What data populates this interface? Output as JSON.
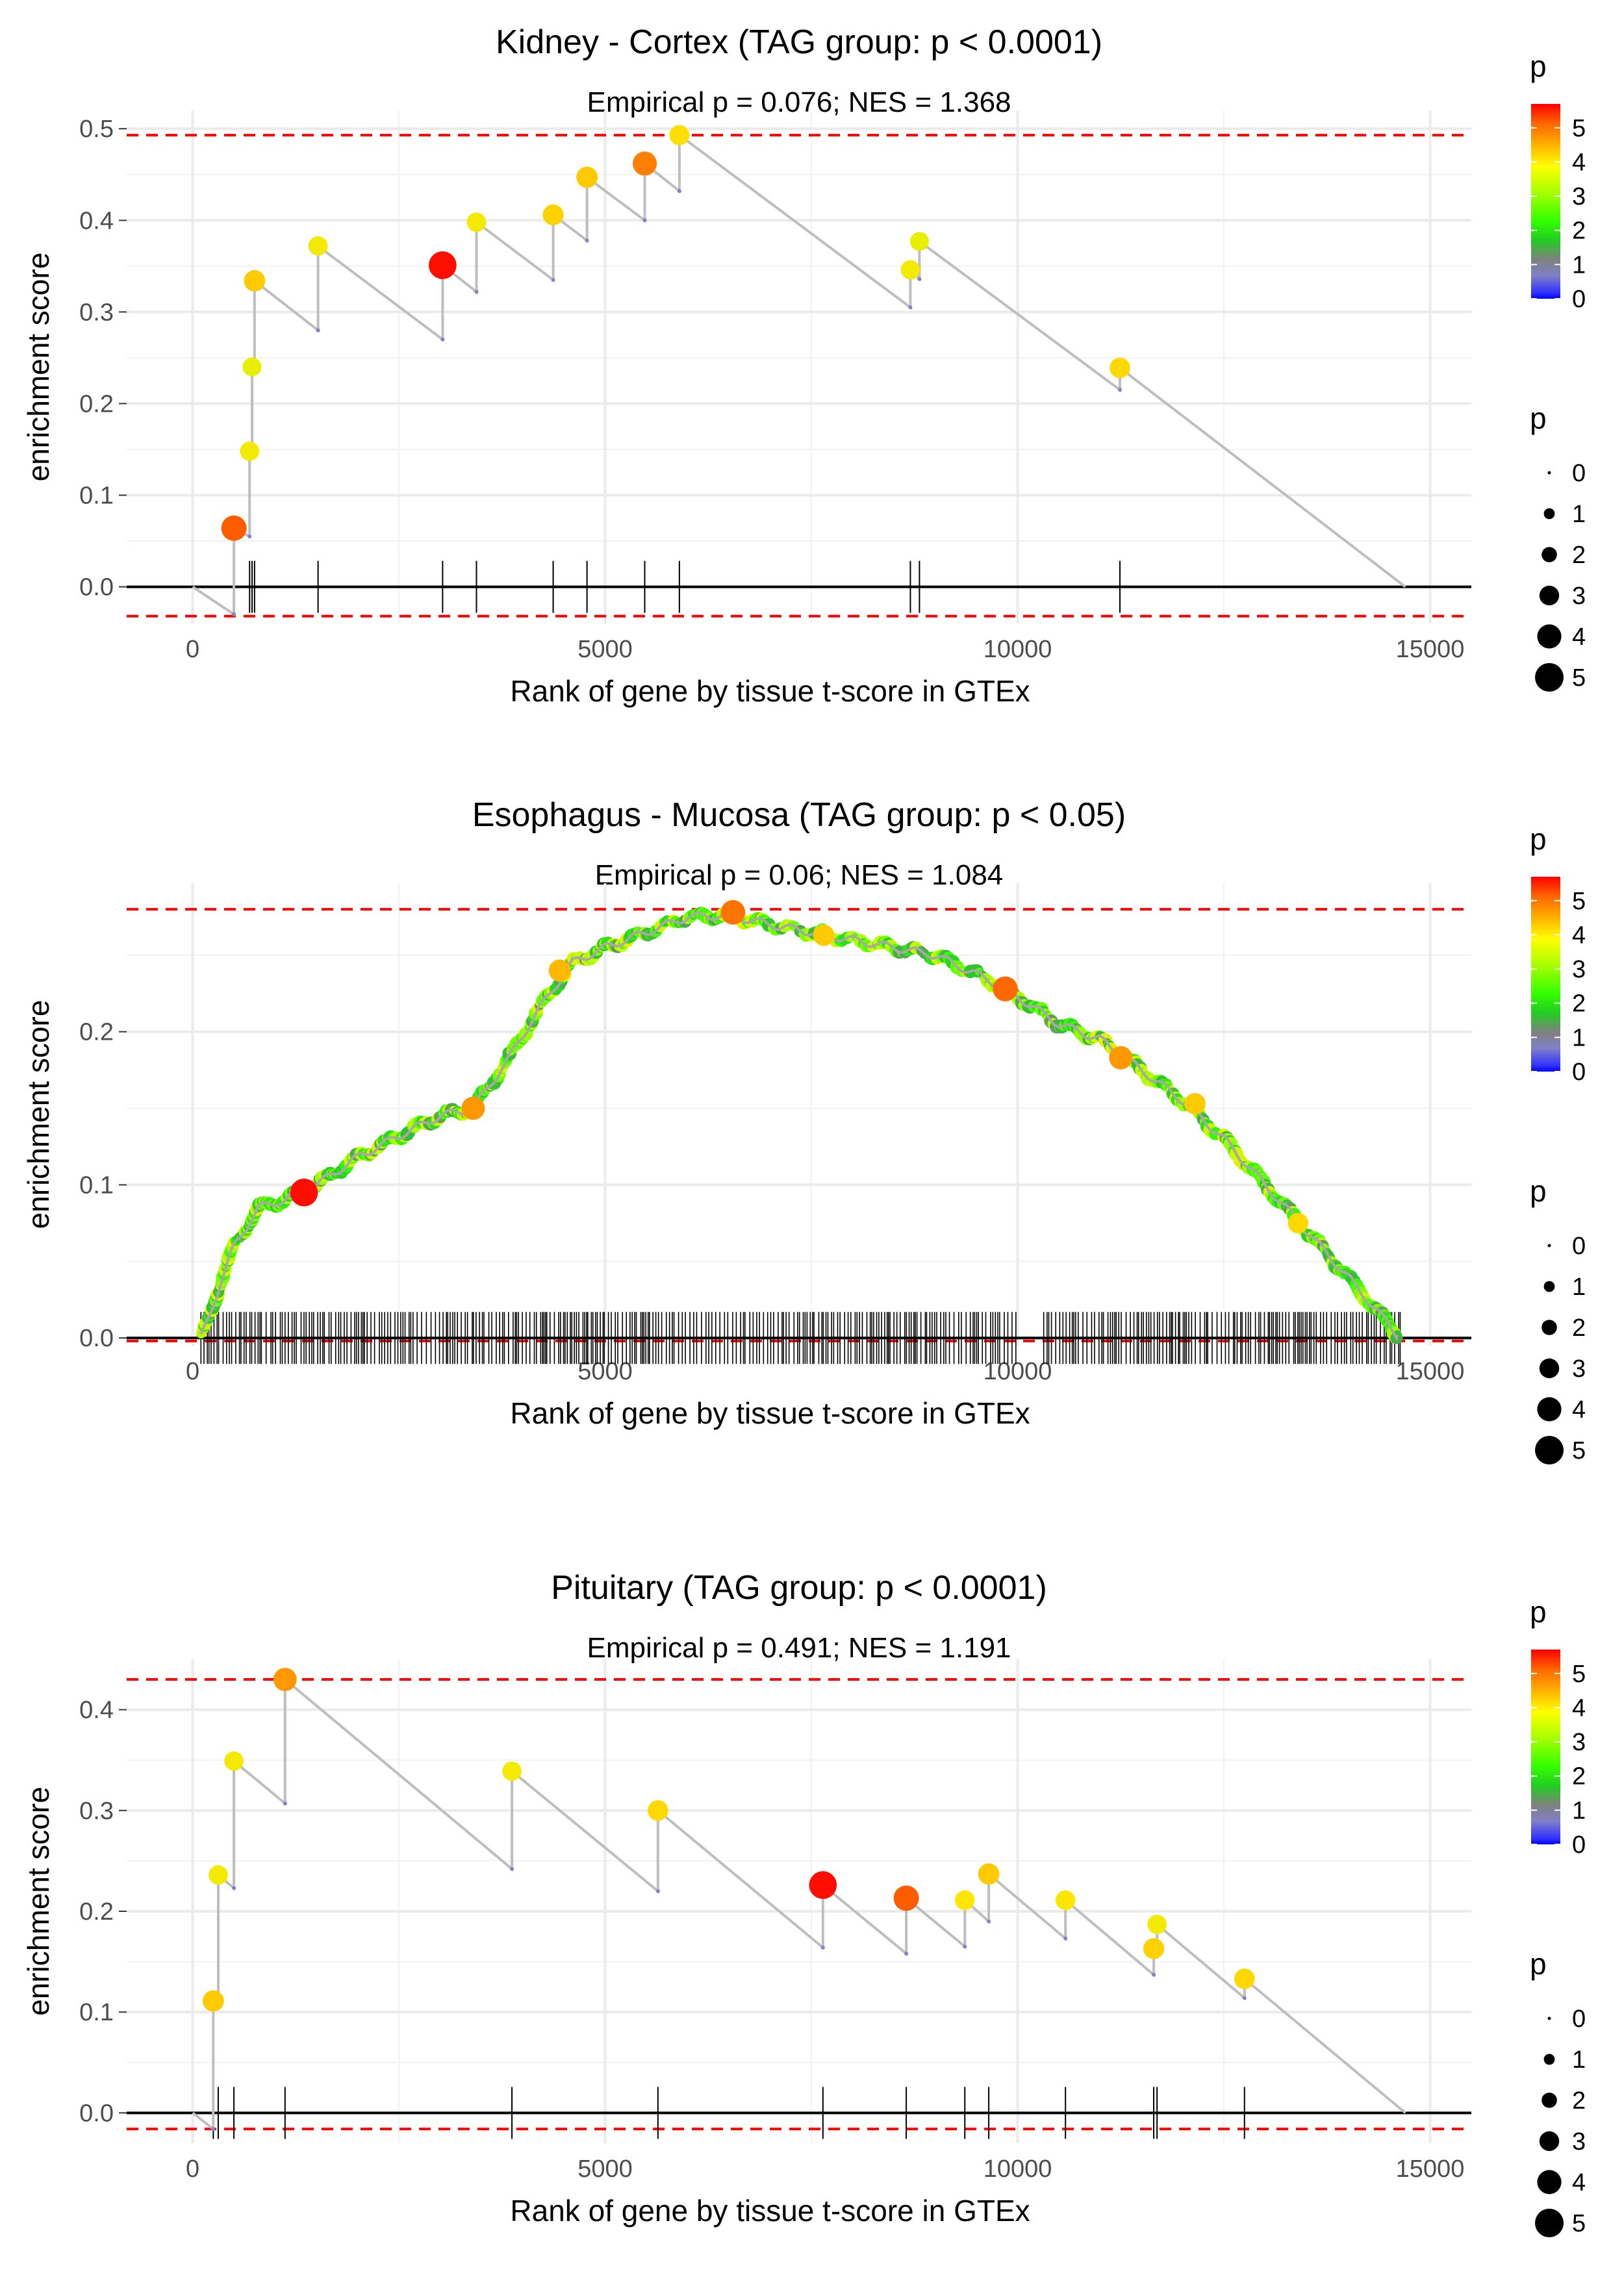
{
  "chart_data": [
    {
      "type": "scatter",
      "title": "Kidney - Cortex (TAG group: p < 0.0001)",
      "subtitle": "Empirical p = 0.076; NES = 1.368",
      "xlabel": "Rank of gene by tissue t-score in GTEx",
      "ylabel": "enrichment score",
      "xlim": [
        -800,
        15500
      ],
      "ylim": [
        -0.04,
        0.52
      ],
      "xticks": [
        0,
        5000,
        10000,
        15000
      ],
      "xtick_labels": [
        "0",
        "5000",
        "10000",
        "15000"
      ],
      "yticks": [
        0.0,
        0.1,
        0.2,
        0.3,
        0.4,
        0.5
      ],
      "ytick_labels": [
        "0.0",
        "0.1",
        "0.2",
        "0.3",
        "0.4",
        "0.5"
      ],
      "max_es": 0.493,
      "min_es": -0.032,
      "n_genes": 14700,
      "path": [
        [
          0,
          0
        ],
        [
          500,
          -0.03
        ],
        [
          500,
          0.064
        ],
        [
          690,
          0.055
        ],
        [
          690,
          0.148
        ],
        [
          720,
          0.148
        ],
        [
          720,
          0.24
        ],
        [
          750,
          0.24
        ],
        [
          750,
          0.334
        ],
        [
          1520,
          0.28
        ],
        [
          1520,
          0.372
        ],
        [
          3030,
          0.27
        ],
        [
          3030,
          0.351
        ],
        [
          3440,
          0.322
        ],
        [
          3440,
          0.398
        ],
        [
          4370,
          0.335
        ],
        [
          4370,
          0.406
        ],
        [
          4780,
          0.378
        ],
        [
          4780,
          0.447
        ],
        [
          5480,
          0.4
        ],
        [
          5480,
          0.462
        ],
        [
          5900,
          0.432
        ],
        [
          5900,
          0.493
        ],
        [
          8700,
          0.305
        ],
        [
          8700,
          0.346
        ],
        [
          8810,
          0.336
        ],
        [
          8810,
          0.377
        ],
        [
          11240,
          0.215
        ],
        [
          11240,
          0.239
        ],
        [
          14700,
          0
        ]
      ],
      "points": [
        {
          "x": 500,
          "y": 0.064,
          "p": 5.0
        },
        {
          "x": 690,
          "y": 0.148,
          "p": 3.5
        },
        {
          "x": 720,
          "y": 0.24,
          "p": 3.4
        },
        {
          "x": 750,
          "y": 0.334,
          "p": 4.0
        },
        {
          "x": 1520,
          "y": 0.372,
          "p": 3.5
        },
        {
          "x": 3030,
          "y": 0.351,
          "p": 5.6
        },
        {
          "x": 3440,
          "y": 0.398,
          "p": 3.5
        },
        {
          "x": 4370,
          "y": 0.406,
          "p": 3.9
        },
        {
          "x": 4780,
          "y": 0.447,
          "p": 4.0
        },
        {
          "x": 5480,
          "y": 0.462,
          "p": 4.7
        },
        {
          "x": 5900,
          "y": 0.493,
          "p": 3.7
        },
        {
          "x": 8700,
          "y": 0.346,
          "p": 3.5
        },
        {
          "x": 8810,
          "y": 0.377,
          "p": 3.4
        },
        {
          "x": 11240,
          "y": 0.239,
          "p": 3.8
        }
      ],
      "hits": [
        500,
        690,
        720,
        750,
        1520,
        3030,
        3440,
        4370,
        4780,
        5480,
        5900,
        8700,
        8810,
        11240
      ],
      "color_legend": {
        "title": "p",
        "ticks": [
          "0",
          "1",
          "2",
          "3",
          "4",
          "5"
        ],
        "values": [
          0,
          1,
          2,
          3,
          4,
          5
        ],
        "max": 5.7
      },
      "size_legend": {
        "title": "p",
        "labels": [
          "0",
          "1",
          "2",
          "3",
          "4",
          "5"
        ]
      }
    },
    {
      "type": "scatter",
      "title": "Esophagus - Mucosa (TAG group: p < 0.05)",
      "subtitle": "Empirical p = 0.06; NES = 1.084",
      "xlabel": "Rank of gene by tissue t-score in GTEx",
      "ylabel": "enrichment score",
      "xlim": [
        -800,
        15500
      ],
      "ylim": [
        -0.005,
        0.297
      ],
      "xticks": [
        0,
        5000,
        10000,
        15000
      ],
      "xtick_labels": [
        "0",
        "5000",
        "10000",
        "15000"
      ],
      "yticks": [
        0.0,
        0.1,
        0.2
      ],
      "ytick_labels": [
        "0.0",
        "0.1",
        "0.2"
      ],
      "max_es": 0.28,
      "min_es": -0.002,
      "n_genes": 14700,
      "curve": [
        [
          100,
          0
        ],
        [
          300,
          0.03
        ],
        [
          500,
          0.06
        ],
        [
          800,
          0.085
        ],
        [
          1100,
          0.09
        ],
        [
          1500,
          0.1
        ],
        [
          2000,
          0.118
        ],
        [
          2500,
          0.132
        ],
        [
          3000,
          0.145
        ],
        [
          3400,
          0.15
        ],
        [
          3800,
          0.18
        ],
        [
          4200,
          0.215
        ],
        [
          4600,
          0.245
        ],
        [
          5000,
          0.255
        ],
        [
          5500,
          0.265
        ],
        [
          6000,
          0.275
        ],
        [
          6500,
          0.276
        ],
        [
          7000,
          0.27
        ],
        [
          8000,
          0.26
        ],
        [
          9000,
          0.25
        ],
        [
          9800,
          0.23
        ],
        [
          10500,
          0.205
        ],
        [
          11000,
          0.195
        ],
        [
          11500,
          0.175
        ],
        [
          12000,
          0.155
        ],
        [
          12500,
          0.13
        ],
        [
          13000,
          0.1
        ],
        [
          13500,
          0.07
        ],
        [
          14000,
          0.04
        ],
        [
          14400,
          0.015
        ],
        [
          14600,
          0.002
        ]
      ],
      "highlight_points": [
        {
          "x": 1350,
          "y": 0.095,
          "p": 5.6
        },
        {
          "x": 3400,
          "y": 0.15,
          "p": 4.5
        },
        {
          "x": 4450,
          "y": 0.24,
          "p": 4.2
        },
        {
          "x": 6550,
          "y": 0.278,
          "p": 4.8
        },
        {
          "x": 7650,
          "y": 0.263,
          "p": 4.0
        },
        {
          "x": 9850,
          "y": 0.228,
          "p": 4.9
        },
        {
          "x": 11250,
          "y": 0.183,
          "p": 4.5
        },
        {
          "x": 12150,
          "y": 0.153,
          "p": 4.0
        },
        {
          "x": 13400,
          "y": 0.075,
          "p": 3.8
        }
      ],
      "hit_range": [
        100,
        14650
      ],
      "hit_gap": [
        10000,
        10300
      ],
      "color_legend": {
        "title": "p",
        "ticks": [
          "0",
          "1",
          "2",
          "3",
          "4",
          "5"
        ],
        "values": [
          0,
          1,
          2,
          3,
          4,
          5
        ],
        "max": 5.7
      },
      "size_legend": {
        "title": "p",
        "labels": [
          "0",
          "1",
          "2",
          "3",
          "4",
          "5"
        ]
      }
    },
    {
      "type": "scatter",
      "title": "Pituitary (TAG group: p < 0.0001)",
      "subtitle": "Empirical p = 0.491; NES = 1.191",
      "xlabel": "Rank of gene by tissue t-score in GTEx",
      "ylabel": "enrichment score",
      "xlim": [
        -800,
        15500
      ],
      "ylim": [
        -0.03,
        0.45
      ],
      "xticks": [
        0,
        5000,
        10000,
        15000
      ],
      "xtick_labels": [
        "0",
        "5000",
        "10000",
        "15000"
      ],
      "yticks": [
        0.0,
        0.1,
        0.2,
        0.3,
        0.4
      ],
      "ytick_labels": [
        "0.0",
        "0.1",
        "0.2",
        "0.3",
        "0.4"
      ],
      "max_es": 0.43,
      "min_es": -0.016,
      "n_genes": 14700,
      "path": [
        [
          0,
          0
        ],
        [
          250,
          -0.016
        ],
        [
          250,
          0.111
        ],
        [
          310,
          0.11
        ],
        [
          310,
          0.236
        ],
        [
          500,
          0.223
        ],
        [
          500,
          0.349
        ],
        [
          1120,
          0.307
        ],
        [
          1120,
          0.43
        ],
        [
          3870,
          0.242
        ],
        [
          3870,
          0.339
        ],
        [
          5640,
          0.22
        ],
        [
          5640,
          0.3
        ],
        [
          7640,
          0.164
        ],
        [
          7640,
          0.226
        ],
        [
          8650,
          0.158
        ],
        [
          8650,
          0.213
        ],
        [
          9360,
          0.165
        ],
        [
          9360,
          0.211
        ],
        [
          9650,
          0.19
        ],
        [
          9650,
          0.237
        ],
        [
          10580,
          0.173
        ],
        [
          10580,
          0.211
        ],
        [
          11650,
          0.137
        ],
        [
          11650,
          0.163
        ],
        [
          11690,
          0.161
        ],
        [
          11690,
          0.187
        ],
        [
          12750,
          0.114
        ],
        [
          12750,
          0.133
        ],
        [
          14700,
          0
        ]
      ],
      "points": [
        {
          "x": 250,
          "y": 0.111,
          "p": 4.0
        },
        {
          "x": 310,
          "y": 0.236,
          "p": 3.5
        },
        {
          "x": 500,
          "y": 0.349,
          "p": 3.5
        },
        {
          "x": 1120,
          "y": 0.43,
          "p": 4.5
        },
        {
          "x": 3870,
          "y": 0.339,
          "p": 3.5
        },
        {
          "x": 5640,
          "y": 0.3,
          "p": 3.8
        },
        {
          "x": 7640,
          "y": 0.226,
          "p": 5.6
        },
        {
          "x": 8650,
          "y": 0.213,
          "p": 5.0
        },
        {
          "x": 9360,
          "y": 0.211,
          "p": 3.6
        },
        {
          "x": 9650,
          "y": 0.237,
          "p": 4.0
        },
        {
          "x": 10580,
          "y": 0.211,
          "p": 3.6
        },
        {
          "x": 11650,
          "y": 0.163,
          "p": 3.9
        },
        {
          "x": 11690,
          "y": 0.187,
          "p": 3.5
        },
        {
          "x": 12750,
          "y": 0.133,
          "p": 3.8
        }
      ],
      "hits": [
        250,
        310,
        500,
        1120,
        3870,
        5640,
        7640,
        8650,
        9360,
        9650,
        10580,
        11650,
        11690,
        12750
      ],
      "color_legend": {
        "title": "p",
        "ticks": [
          "0",
          "1",
          "2",
          "3",
          "4",
          "5"
        ],
        "values": [
          0,
          1,
          2,
          3,
          4,
          5
        ],
        "max": 5.7
      },
      "size_legend": {
        "title": "p",
        "labels": [
          "0",
          "1",
          "2",
          "3",
          "4",
          "5"
        ]
      }
    }
  ]
}
